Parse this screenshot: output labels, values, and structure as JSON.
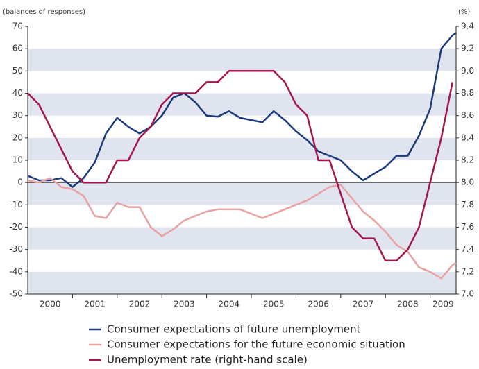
{
  "chart_data": {
    "type": "line",
    "y_label": "(balances of responses)",
    "y2_label": "(%)",
    "x": [
      2000,
      2000.25,
      2000.5,
      2000.75,
      2001,
      2001.25,
      2001.5,
      2001.75,
      2002,
      2002.25,
      2002.5,
      2002.75,
      2003,
      2003.25,
      2003.5,
      2003.75,
      2004,
      2004.25,
      2004.5,
      2004.75,
      2005,
      2005.25,
      2005.5,
      2005.75,
      2006,
      2006.25,
      2006.5,
      2006.75,
      2007,
      2007.25,
      2007.5,
      2007.75,
      2008,
      2008.25,
      2008.5,
      2008.75,
      2009,
      2009.25,
      2009.5,
      2009.58
    ],
    "xlim": [
      2000,
      2009.58
    ],
    "xticks": [
      {
        "value": 2000.5,
        "label": "2000"
      },
      {
        "value": 2001.5,
        "label": "2001"
      },
      {
        "value": 2002.5,
        "label": "2002"
      },
      {
        "value": 2003.5,
        "label": "2003"
      },
      {
        "value": 2004.5,
        "label": "2004"
      },
      {
        "value": 2005.5,
        "label": "2005"
      },
      {
        "value": 2006.5,
        "label": "2006"
      },
      {
        "value": 2007.5,
        "label": "2007"
      },
      {
        "value": 2008.5,
        "label": "2008"
      },
      {
        "value": 2009.29,
        "label": "2009"
      }
    ],
    "ylim": [
      -50,
      70
    ],
    "yticks": [
      -50,
      -40,
      -30,
      -20,
      -10,
      0,
      10,
      20,
      30,
      40,
      50,
      60,
      70
    ],
    "y2lim": [
      7,
      9.4
    ],
    "y2ticks": [
      {
        "value": 7,
        "label": "7.0"
      },
      7.2,
      7.4,
      7.6,
      7.8,
      {
        "value": 8,
        "label": "8.0"
      },
      8.2,
      8.4,
      8.6,
      8.8,
      {
        "value": 9,
        "label": "9.0"
      },
      9.2,
      9.4
    ],
    "grid": true,
    "legend": "bottom",
    "series": [
      {
        "name": "Consumer expectations of future unemployment",
        "color": "#1b3a7c",
        "values": [
          3,
          1,
          1,
          2,
          -2,
          2,
          9,
          22,
          29,
          25,
          22,
          25,
          30,
          38,
          40,
          36,
          30,
          29.5,
          32,
          29,
          28,
          27,
          32,
          28,
          23,
          19,
          14,
          12,
          10,
          5,
          1,
          4,
          7,
          12,
          12,
          21,
          33,
          60,
          66,
          67
        ]
      },
      {
        "name": "Consumer expectations for the future economic situation",
        "color": "#e9a1a1",
        "values": [
          1,
          0,
          2,
          -2,
          -3,
          -6,
          -15,
          -16,
          -9,
          -11,
          -11,
          -20,
          -24,
          -21,
          -17,
          -15,
          -13,
          -12,
          -12,
          -12,
          -14,
          -16,
          -14,
          -12,
          -10,
          -8,
          -5,
          -2,
          -1,
          -7,
          -13,
          -17,
          -22,
          -28,
          -31,
          -38,
          -40,
          -43,
          -37,
          -36
        ]
      },
      {
        "name": "Unemployment rate (right-hand scale)",
        "color": "#a3154c",
        "axis": "y2",
        "values": [
          8.8,
          8.7,
          8.5,
          8.3,
          8.1,
          8.0,
          8.0,
          8.0,
          8.2,
          8.2,
          8.4,
          8.5,
          8.7,
          8.8,
          8.8,
          8.8,
          8.9,
          8.9,
          9.0,
          9.0,
          9.0,
          9.0,
          9.0,
          8.9,
          8.7,
          8.6,
          8.2,
          8.2,
          7.9,
          7.6,
          7.5,
          7.5,
          7.3,
          7.3,
          7.4,
          7.6,
          8.0,
          8.4,
          8.9,
          null
        ]
      }
    ]
  }
}
